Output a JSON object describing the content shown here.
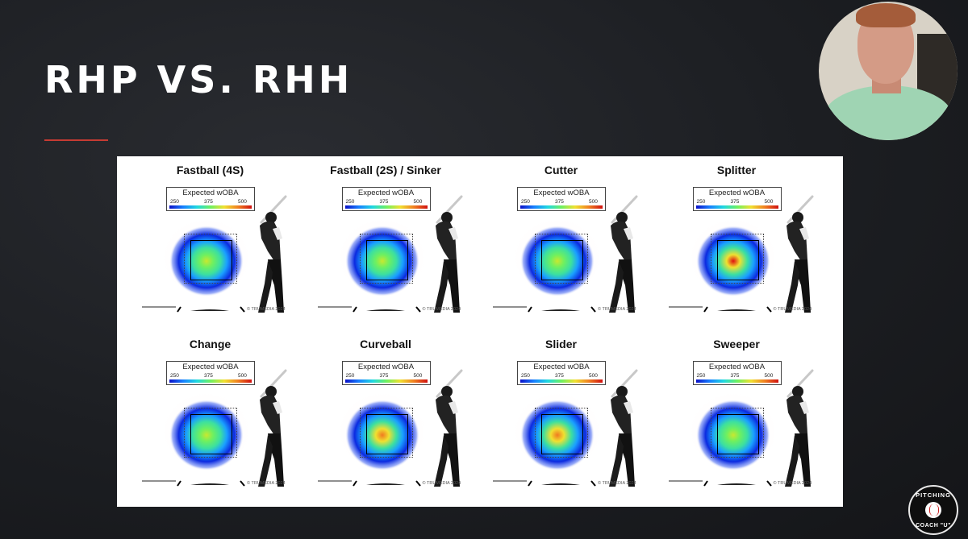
{
  "slide": {
    "title": "RHP VS. RHH",
    "accent_color": "#c63b33"
  },
  "legend": {
    "label": "Expected wOBA",
    "ticks": [
      "250",
      "375",
      "500"
    ]
  },
  "credit": "© TRUMEDIA 2024",
  "pitches": [
    {
      "name": "Fastball (4S)",
      "hot": 0.35
    },
    {
      "name": "Fastball (2S) / Sinker",
      "hot": 0.2
    },
    {
      "name": "Cutter",
      "hot": 0.45
    },
    {
      "name": "Splitter",
      "hot": 0.95
    },
    {
      "name": "Change",
      "hot": 0.4
    },
    {
      "name": "Curveball",
      "hot": 0.75
    },
    {
      "name": "Slider",
      "hot": 0.8
    },
    {
      "name": "Sweeper",
      "hot": 0.5
    }
  ],
  "logo": {
    "top_text": "PITCHING",
    "bottom_text": "COACH \"U\""
  }
}
